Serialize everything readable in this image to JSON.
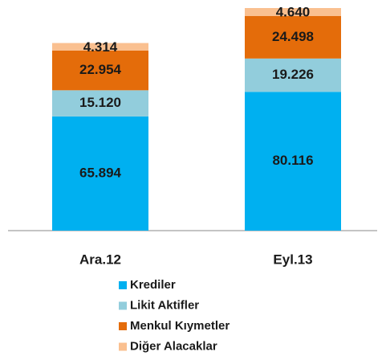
{
  "chart_data": {
    "type": "stacked_bar",
    "categories": [
      "Ara.12",
      "Eyl.13"
    ],
    "series": [
      {
        "name": "Krediler",
        "color": "#00b0f0",
        "values": [
          65.894,
          80.116
        ],
        "value_labels": [
          "65.894",
          "80.116"
        ]
      },
      {
        "name": "Likit Aktifler",
        "color": "#92cddc",
        "values": [
          15.12,
          19.226
        ],
        "value_labels": [
          "15.120",
          "19.226"
        ]
      },
      {
        "name": "Menkul Kıymetler",
        "color": "#e46c0a",
        "values": [
          22.954,
          24.498
        ],
        "value_labels": [
          "22.954",
          "24.498"
        ]
      },
      {
        "name": "Diğer Alacaklar",
        "color": "#fac090",
        "values": [
          4.314,
          4.64
        ],
        "value_labels": [
          "4.314",
          "4.640"
        ]
      }
    ]
  }
}
